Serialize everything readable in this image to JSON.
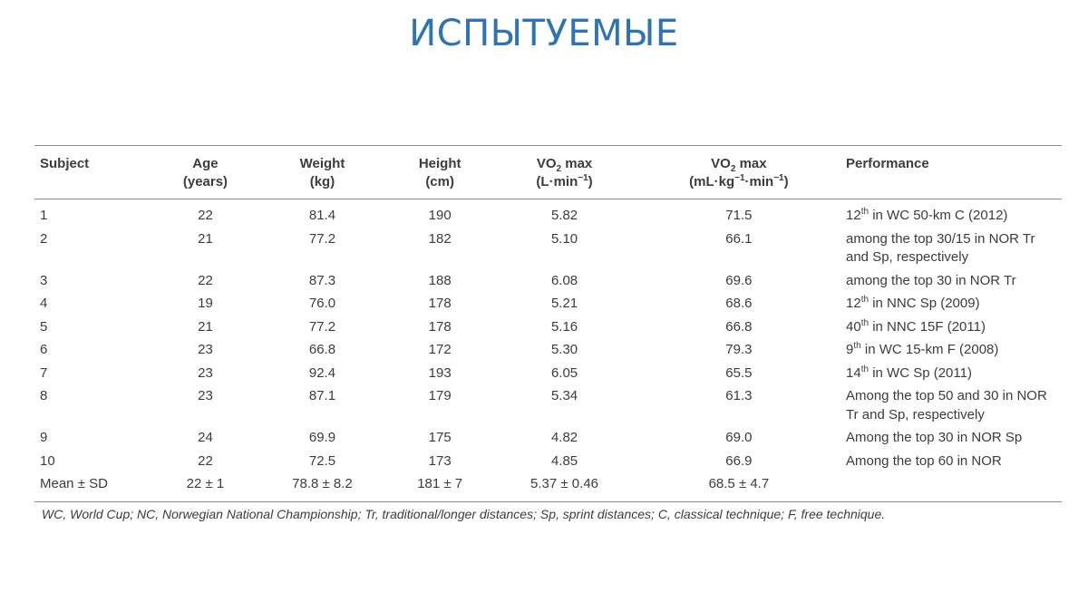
{
  "title": "ИСПЫТУЕМЫЕ",
  "table": {
    "headers": {
      "subject": "Subject",
      "age": {
        "label": "Age",
        "unit": "(years)"
      },
      "weight": {
        "label": "Weight",
        "unit": "(kg)"
      },
      "height": {
        "label": "Height",
        "unit": "(cm)"
      },
      "vo2_abs": {
        "pre": "VO",
        "sub": "2",
        "post": " max",
        "unit_a": "(L·min",
        "unit_sup": "−1",
        "unit_b": ")"
      },
      "vo2_rel": {
        "pre": "VO",
        "sub": "2",
        "post": " max",
        "unit_a": "(mL·kg",
        "unit_sup1": "−1",
        "unit_b": "·min",
        "unit_sup2": "−1",
        "unit_c": ")"
      },
      "performance": "Performance"
    },
    "rows": [
      {
        "subject": "1",
        "age": "22",
        "weight": "81.4",
        "height": "190",
        "vo2_abs": "5.82",
        "vo2_rel": "71.5",
        "perf_a": "12",
        "perf_sup": "th",
        "perf_b": " in WC 50-km C (2012)"
      },
      {
        "subject": "2",
        "age": "21",
        "weight": "77.2",
        "height": "182",
        "vo2_abs": "5.10",
        "vo2_rel": "66.1",
        "perf_a": "among the top 30/15 in NOR Tr and Sp, respectively",
        "perf_sup": "",
        "perf_b": ""
      },
      {
        "subject": "3",
        "age": "22",
        "weight": "87.3",
        "height": "188",
        "vo2_abs": "6.08",
        "vo2_rel": "69.6",
        "perf_a": "among the top 30 in NOR Tr",
        "perf_sup": "",
        "perf_b": ""
      },
      {
        "subject": "4",
        "age": "19",
        "weight": "76.0",
        "height": "178",
        "vo2_abs": "5.21",
        "vo2_rel": "68.6",
        "perf_a": "12",
        "perf_sup": "th",
        "perf_b": " in NNC Sp (2009)"
      },
      {
        "subject": "5",
        "age": "21",
        "weight": "77.2",
        "height": "178",
        "vo2_abs": "5.16",
        "vo2_rel": "66.8",
        "perf_a": "40",
        "perf_sup": "th",
        "perf_b": " in NNC 15F (2011)"
      },
      {
        "subject": "6",
        "age": "23",
        "weight": "66.8",
        "height": "172",
        "vo2_abs": "5.30",
        "vo2_rel": "79.3",
        "perf_a": "9",
        "perf_sup": "th",
        "perf_b": " in WC 15-km F (2008)"
      },
      {
        "subject": "7",
        "age": "23",
        "weight": "92.4",
        "height": "193",
        "vo2_abs": "6.05",
        "vo2_rel": "65.5",
        "perf_a": "14",
        "perf_sup": "th",
        "perf_b": " in WC Sp (2011)"
      },
      {
        "subject": "8",
        "age": "23",
        "weight": "87.1",
        "height": "179",
        "vo2_abs": "5.34",
        "vo2_rel": "61.3",
        "perf_a": "Among the top 50 and 30 in NOR Tr and Sp, respectively",
        "perf_sup": "",
        "perf_b": ""
      },
      {
        "subject": "9",
        "age": "24",
        "weight": "69.9",
        "height": "175",
        "vo2_abs": "4.82",
        "vo2_rel": "69.0",
        "perf_a": "Among the top 30 in NOR Sp",
        "perf_sup": "",
        "perf_b": ""
      },
      {
        "subject": "10",
        "age": "22",
        "weight": "72.5",
        "height": "173",
        "vo2_abs": "4.85",
        "vo2_rel": "66.9",
        "perf_a": "Among the top 60 in NOR",
        "perf_sup": "",
        "perf_b": ""
      },
      {
        "subject": "Mean ± SD",
        "age": "22 ± 1",
        "weight": "78.8 ± 8.2",
        "height": "181 ± 7",
        "vo2_abs": "5.37 ± 0.46",
        "vo2_rel": "68.5 ± 4.7",
        "perf_a": "",
        "perf_sup": "",
        "perf_b": ""
      }
    ]
  },
  "footnote": "WC, World Cup; NC, Norwegian National Championship; Tr, traditional/longer distances; Sp, sprint distances; C,  classical technique; F, free technique."
}
